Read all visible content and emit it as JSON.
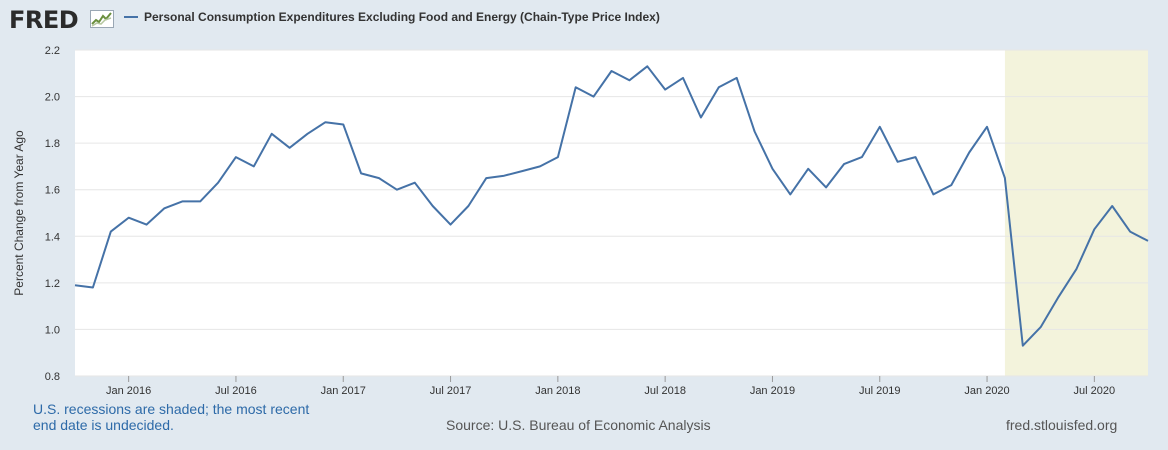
{
  "header": {
    "logo_text": "FRED",
    "legend_label": "Personal Consumption Expenditures Excluding Food and Energy (Chain-Type Price Index)"
  },
  "footer": {
    "recession_note": "U.S. recessions are shaded; the most recent end date is undecided.",
    "source": "Source: U.S. Bureau of Economic Analysis",
    "site": "fred.stlouisfed.org"
  },
  "colors": {
    "line": "#4572a7",
    "recession": "#f3f3dc",
    "plot_bg": "#ffffff",
    "page_bg": "#e1e9f0",
    "grid": "#e6e6e6"
  },
  "chart_data": {
    "type": "line",
    "title": "",
    "xlabel": "",
    "ylabel": "Percent Change from Year Ago",
    "ylim": [
      0.8,
      2.2
    ],
    "yticks": [
      "0.8",
      "1.0",
      "1.2",
      "1.4",
      "1.6",
      "1.8",
      "2.0",
      "2.2"
    ],
    "xlim": [
      "2015-10",
      "2020-10"
    ],
    "xticks": [
      {
        "label": "Jan 2016",
        "x": "2016-01"
      },
      {
        "label": "Jul 2016",
        "x": "2016-07"
      },
      {
        "label": "Jan 2017",
        "x": "2017-01"
      },
      {
        "label": "Jul 2017",
        "x": "2017-07"
      },
      {
        "label": "Jan 2018",
        "x": "2018-01"
      },
      {
        "label": "Jul 2018",
        "x": "2018-07"
      },
      {
        "label": "Jan 2019",
        "x": "2019-01"
      },
      {
        "label": "Jul 2019",
        "x": "2019-07"
      },
      {
        "label": "Jan 2020",
        "x": "2020-01"
      },
      {
        "label": "Jul 2020",
        "x": "2020-07"
      }
    ],
    "grid": true,
    "recession": {
      "start": "2020-02",
      "end": "2020-10"
    },
    "series": [
      {
        "name": "Personal Consumption Expenditures Excluding Food and Energy (Chain-Type Price Index)",
        "x": [
          "2015-10",
          "2015-11",
          "2015-12",
          "2016-01",
          "2016-02",
          "2016-03",
          "2016-04",
          "2016-05",
          "2016-06",
          "2016-07",
          "2016-08",
          "2016-09",
          "2016-10",
          "2016-11",
          "2016-12",
          "2017-01",
          "2017-02",
          "2017-03",
          "2017-04",
          "2017-05",
          "2017-06",
          "2017-07",
          "2017-08",
          "2017-09",
          "2017-10",
          "2017-11",
          "2017-12",
          "2018-01",
          "2018-02",
          "2018-03",
          "2018-04",
          "2018-05",
          "2018-06",
          "2018-07",
          "2018-08",
          "2018-09",
          "2018-10",
          "2018-11",
          "2018-12",
          "2019-01",
          "2019-02",
          "2019-03",
          "2019-04",
          "2019-05",
          "2019-06",
          "2019-07",
          "2019-08",
          "2019-09",
          "2019-10",
          "2019-11",
          "2019-12",
          "2020-01",
          "2020-02",
          "2020-03",
          "2020-04",
          "2020-05",
          "2020-06",
          "2020-07",
          "2020-08",
          "2020-09",
          "2020-10"
        ],
        "values": [
          1.19,
          1.18,
          1.42,
          1.48,
          1.45,
          1.52,
          1.55,
          1.55,
          1.63,
          1.74,
          1.7,
          1.84,
          1.78,
          1.84,
          1.89,
          1.88,
          1.67,
          1.65,
          1.6,
          1.63,
          1.53,
          1.45,
          1.53,
          1.65,
          1.66,
          1.68,
          1.7,
          1.74,
          2.04,
          2.0,
          2.11,
          2.07,
          2.13,
          2.03,
          2.08,
          1.91,
          2.04,
          2.08,
          1.85,
          1.69,
          1.58,
          1.69,
          1.61,
          1.71,
          1.74,
          1.87,
          1.72,
          1.74,
          1.58,
          1.62,
          1.76,
          1.87,
          1.65,
          0.93,
          1.01,
          1.14,
          1.26,
          1.43,
          1.53,
          1.42,
          1.38
        ]
      }
    ]
  }
}
